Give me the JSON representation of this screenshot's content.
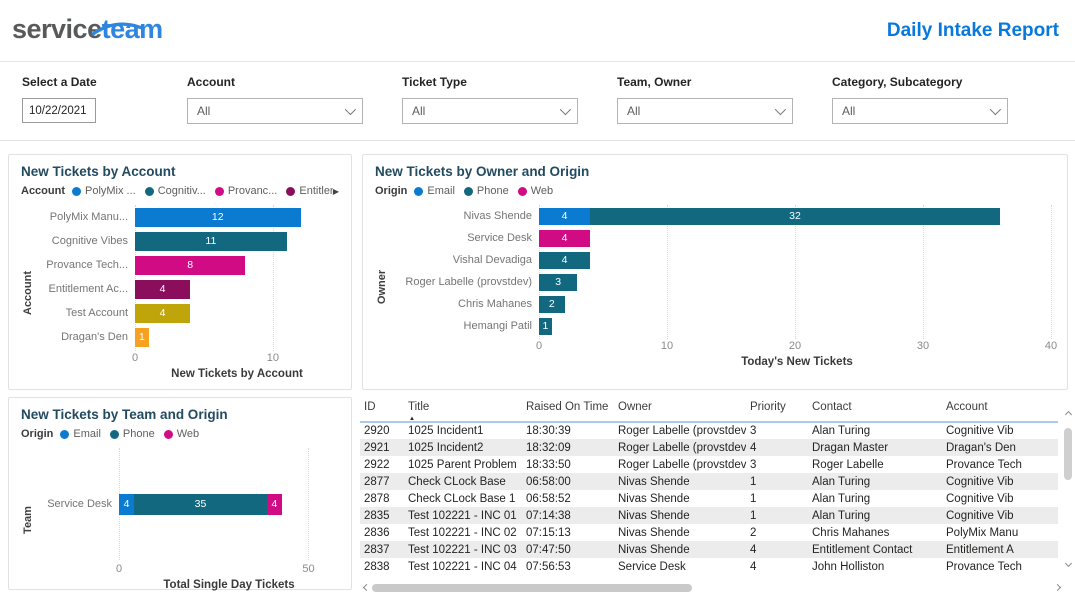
{
  "header": {
    "logo_part1": "service",
    "logo_part2": "team",
    "report_title": "Daily Intake Report"
  },
  "filters": [
    {
      "label": "Select a Date",
      "value": "10/22/2021"
    },
    {
      "label": "Account",
      "value": "All"
    },
    {
      "label": "Ticket Type",
      "value": "All"
    },
    {
      "label": "Team, Owner",
      "value": "All"
    },
    {
      "label": "Category, Subcategory",
      "value": "All"
    }
  ],
  "colors": {
    "accent_blue": "#0878dd",
    "bar_blue": "#0b7ad1",
    "bar_teal": "#11687f",
    "bar_magenta": "#d00b84",
    "bar_maroon": "#8b0e5d",
    "bar_gold": "#bfa40a",
    "bar_orange": "#f6a11f"
  },
  "chart_data": [
    {
      "type": "bar",
      "title": "New Tickets by Account",
      "legend_title": "Account",
      "legend_overflow": true,
      "legend": [
        {
          "label": "PolyMix ...",
          "color": "#0b7ad1"
        },
        {
          "label": "Cognitiv...",
          "color": "#11687f"
        },
        {
          "label": "Provanc...",
          "color": "#d00b84"
        },
        {
          "label": "Entitlem...",
          "color": "#8b0e5d"
        }
      ],
      "categories": [
        "PolyMix Manu...",
        "Cognitive Vibes",
        "Provance Tech...",
        "Entitlement Ac...",
        "Test Account",
        "Dragan's Den"
      ],
      "values": [
        12,
        11,
        8,
        4,
        4,
        1
      ],
      "bar_colors": [
        "#0b7ad1",
        "#11687f",
        "#d00b84",
        "#8b0e5d",
        "#bfa40a",
        "#f6a11f"
      ],
      "xlabel": "New Tickets by Account",
      "ylabel": "Account",
      "xlim": [
        0,
        14.5
      ],
      "xticks": [
        0,
        10
      ]
    },
    {
      "type": "stacked-bar",
      "title": "New Tickets by Owner and Origin",
      "legend_title": "Origin",
      "legend_overflow": false,
      "legend": [
        {
          "label": "Email",
          "color": "#0b7ad1"
        },
        {
          "label": "Phone",
          "color": "#11687f"
        },
        {
          "label": "Web",
          "color": "#d00b84"
        }
      ],
      "categories": [
        "Nivas Shende",
        "Service Desk",
        "Vishal Devadiga",
        "Roger Labelle (provstdev)",
        "Chris Mahanes",
        "Hemangi Patil"
      ],
      "segments": [
        [
          {
            "name": "Email",
            "value": 4
          },
          {
            "name": "Phone",
            "value": 32
          }
        ],
        [
          {
            "name": "Web",
            "value": 4
          }
        ],
        [
          {
            "name": "Phone",
            "value": 4
          }
        ],
        [
          {
            "name": "Phone",
            "value": 3
          }
        ],
        [
          {
            "name": "Phone",
            "value": 2
          }
        ],
        [
          {
            "name": "Phone",
            "value": 1
          }
        ]
      ],
      "xlabel": "Today's New Tickets",
      "ylabel": "Owner",
      "xlim": [
        0,
        40
      ],
      "xticks": [
        0,
        10,
        20,
        30,
        40
      ]
    },
    {
      "type": "stacked-bar",
      "title": "New Tickets by Team and Origin",
      "legend_title": "Origin",
      "legend_overflow": false,
      "legend": [
        {
          "label": "Email",
          "color": "#0b7ad1"
        },
        {
          "label": "Phone",
          "color": "#11687f"
        },
        {
          "label": "Web",
          "color": "#d00b84"
        }
      ],
      "categories": [
        "Service Desk"
      ],
      "segments": [
        [
          {
            "name": "Email",
            "value": 4
          },
          {
            "name": "Phone",
            "value": 35
          },
          {
            "name": "Web",
            "value": 4
          }
        ]
      ],
      "xlabel": "Total Single Day Tickets",
      "ylabel": "Team",
      "xlim": [
        0,
        57
      ],
      "xticks": [
        0,
        50
      ]
    }
  ],
  "table": {
    "columns": [
      {
        "label": "ID",
        "sorted": null
      },
      {
        "label": "Title",
        "sorted": "asc"
      },
      {
        "label": "Raised On Time",
        "sorted": null
      },
      {
        "label": "Owner",
        "sorted": null
      },
      {
        "label": "Priority",
        "sorted": null
      },
      {
        "label": "Contact",
        "sorted": null
      },
      {
        "label": "Account",
        "sorted": null
      }
    ],
    "rows": [
      [
        "2920",
        "1025 Incident1",
        "18:30:39",
        "Roger Labelle (provstdev)",
        "3",
        "Alan Turing",
        "Cognitive Vib"
      ],
      [
        "2921",
        "1025 Incident2",
        "18:32:09",
        "Roger Labelle (provstdev)",
        "4",
        "Dragan Master",
        "Dragan's Den"
      ],
      [
        "2922",
        "1025 Parent Problem",
        "18:33:50",
        "Roger Labelle (provstdev)",
        "3",
        "Roger Labelle",
        "Provance Tech"
      ],
      [
        "2877",
        "Check CLock Base",
        "06:58:00",
        "Nivas Shende",
        "1",
        "Alan Turing",
        "Cognitive Vib"
      ],
      [
        "2878",
        "Check CLock Base 1",
        "06:58:52",
        "Nivas Shende",
        "1",
        "Alan Turing",
        "Cognitive Vib"
      ],
      [
        "2835",
        "Test 102221 - INC 01",
        "07:14:38",
        "Nivas Shende",
        "1",
        "Alan Turing",
        "Cognitive Vib"
      ],
      [
        "2836",
        "Test 102221 - INC 02",
        "07:15:13",
        "Nivas Shende",
        "2",
        "Chris Mahanes",
        "PolyMix Manu"
      ],
      [
        "2837",
        "Test 102221 - INC 03",
        "07:47:50",
        "Nivas Shende",
        "4",
        "Entitlement Contact",
        "Entitlement A"
      ],
      [
        "2838",
        "Test 102221 - INC 04",
        "07:56:53",
        "Service Desk",
        "4",
        "John Holliston",
        "Provance Tech"
      ]
    ]
  }
}
